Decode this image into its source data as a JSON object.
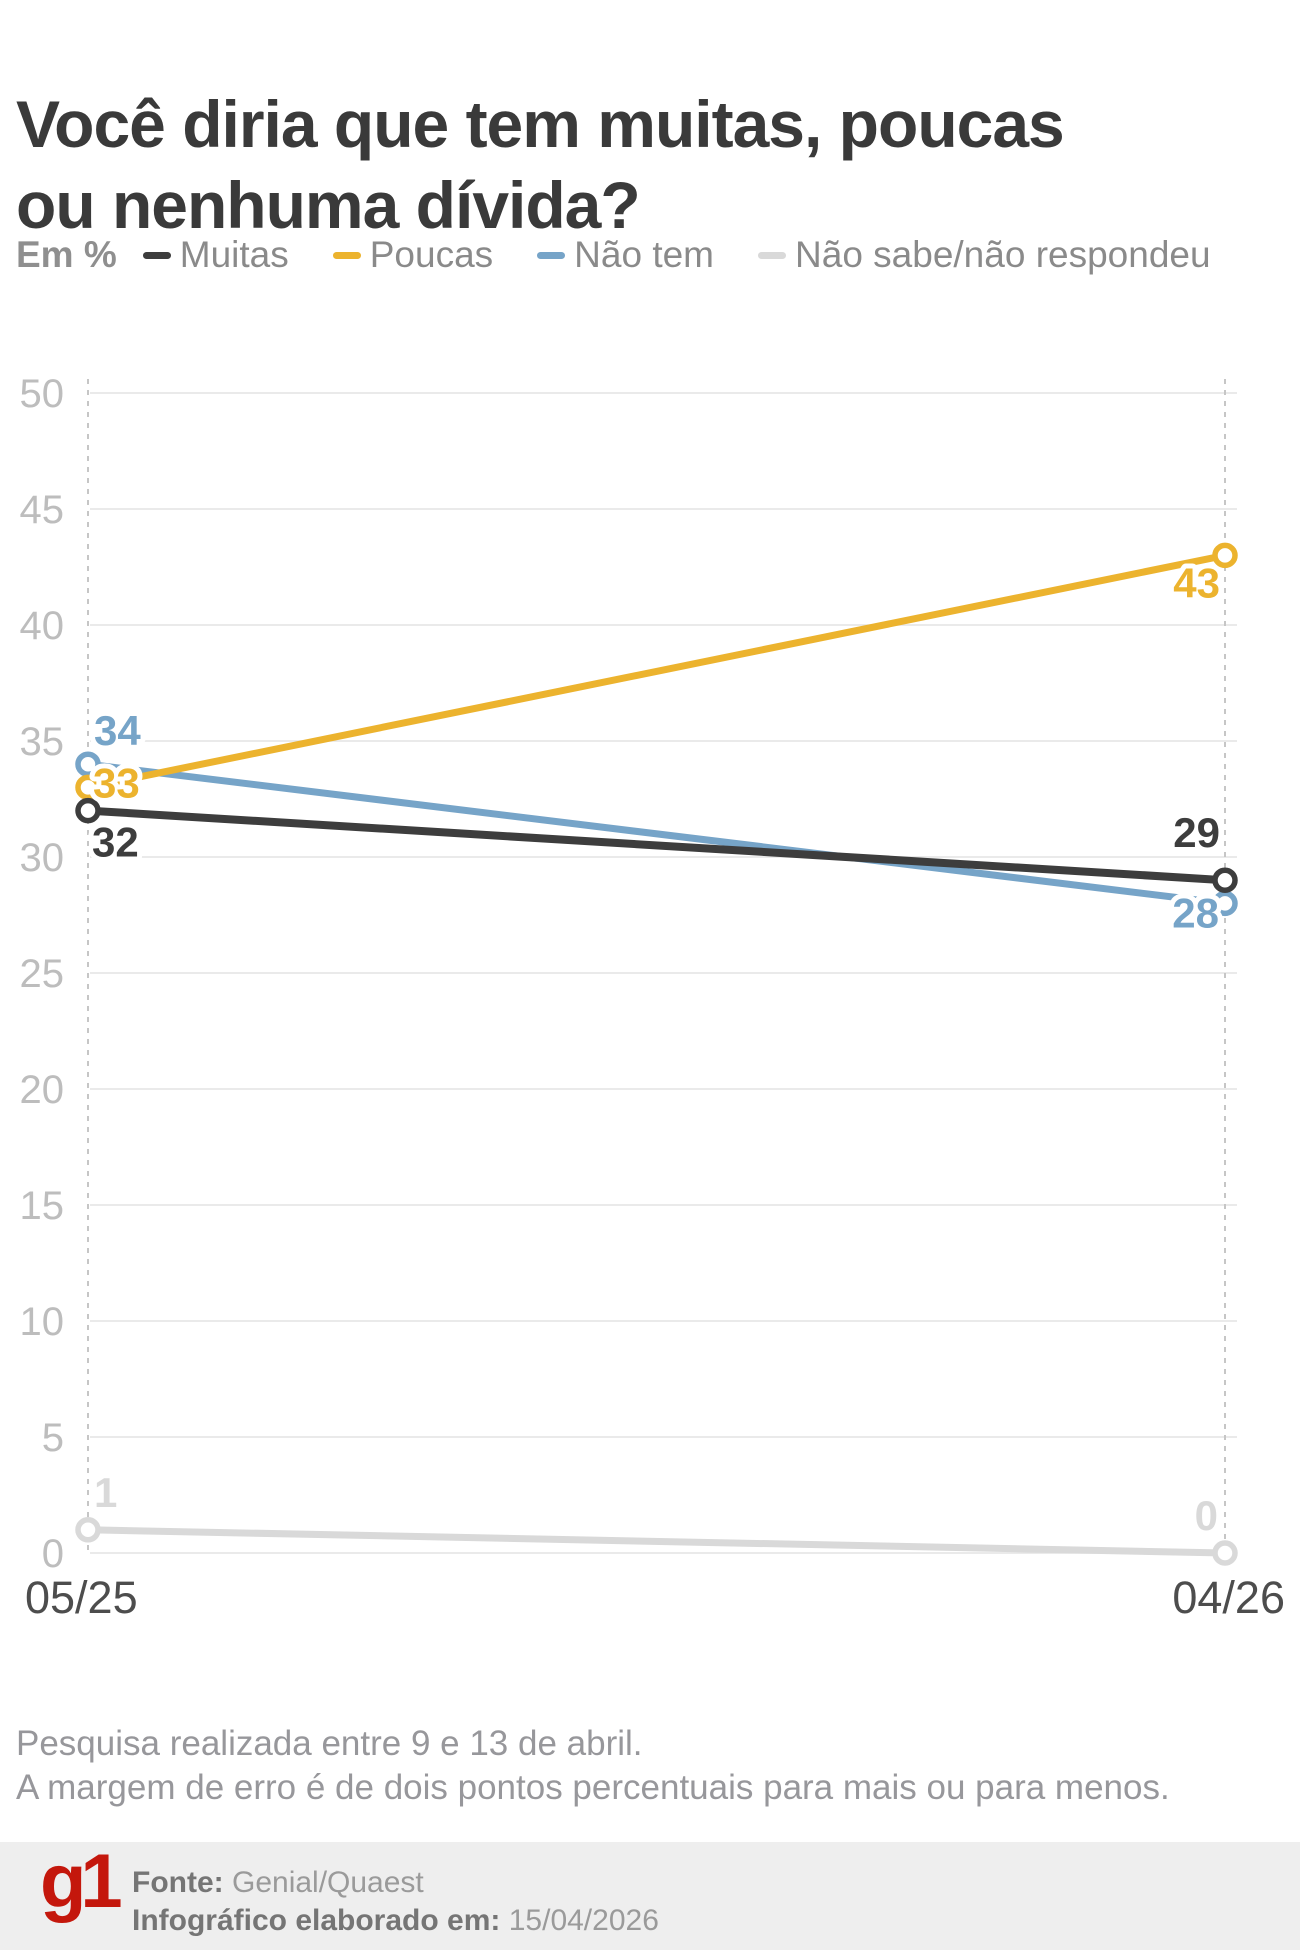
{
  "title": "Você diria que tem muitas, poucas ou nenhuma dívida?",
  "legend": {
    "unit_label": "Em %",
    "items": [
      {
        "label": "Muitas",
        "color": "#3d3d3d"
      },
      {
        "label": "Poucas",
        "color": "#ecb32e"
      },
      {
        "label": "Não tem",
        "color": "#76a4c8"
      },
      {
        "label": "Não sabe/não respondeu",
        "color": "#d9d9d9"
      }
    ]
  },
  "chart_data": {
    "type": "line",
    "unit": "%",
    "x": [
      "05/25",
      "04/26"
    ],
    "series": [
      {
        "name": "Muitas",
        "color": "#3d3d3d",
        "values": [
          32,
          29
        ]
      },
      {
        "name": "Poucas",
        "color": "#ecb32e",
        "values": [
          33,
          43
        ]
      },
      {
        "name": "Não tem",
        "color": "#76a4c8",
        "values": [
          34,
          28
        ]
      },
      {
        "name": "Não sabe/não respondeu",
        "color": "#d9d9d9",
        "values": [
          1,
          0
        ]
      }
    ],
    "ylim": [
      0,
      50
    ],
    "ytick_step": 5,
    "grid": true,
    "legend_position": "top"
  },
  "notes": [
    "Pesquisa realizada entre 9 e 13 de abril.",
    "A margem de erro é de dois pontos percentuais para mais ou para menos."
  ],
  "footer": {
    "logo": "g1",
    "source_label": "Fonte:",
    "source_value": "Genial/Quaest",
    "elaborated_label": "Infográfico elaborado em:",
    "elaborated_value": "15/04/2026"
  },
  "colors": {
    "title_text": "#3a3a3a",
    "legend_text": "#8a8a8a",
    "grid_line": "#e3e3e3",
    "dashed_axis": "#c6c6c6",
    "y_tick_text": "#bdbdbd",
    "x_tick_text": "#4d4d4d",
    "notes_text": "#97979b",
    "footer_band": "#eeeeee",
    "logo_red": "#c4170c"
  }
}
